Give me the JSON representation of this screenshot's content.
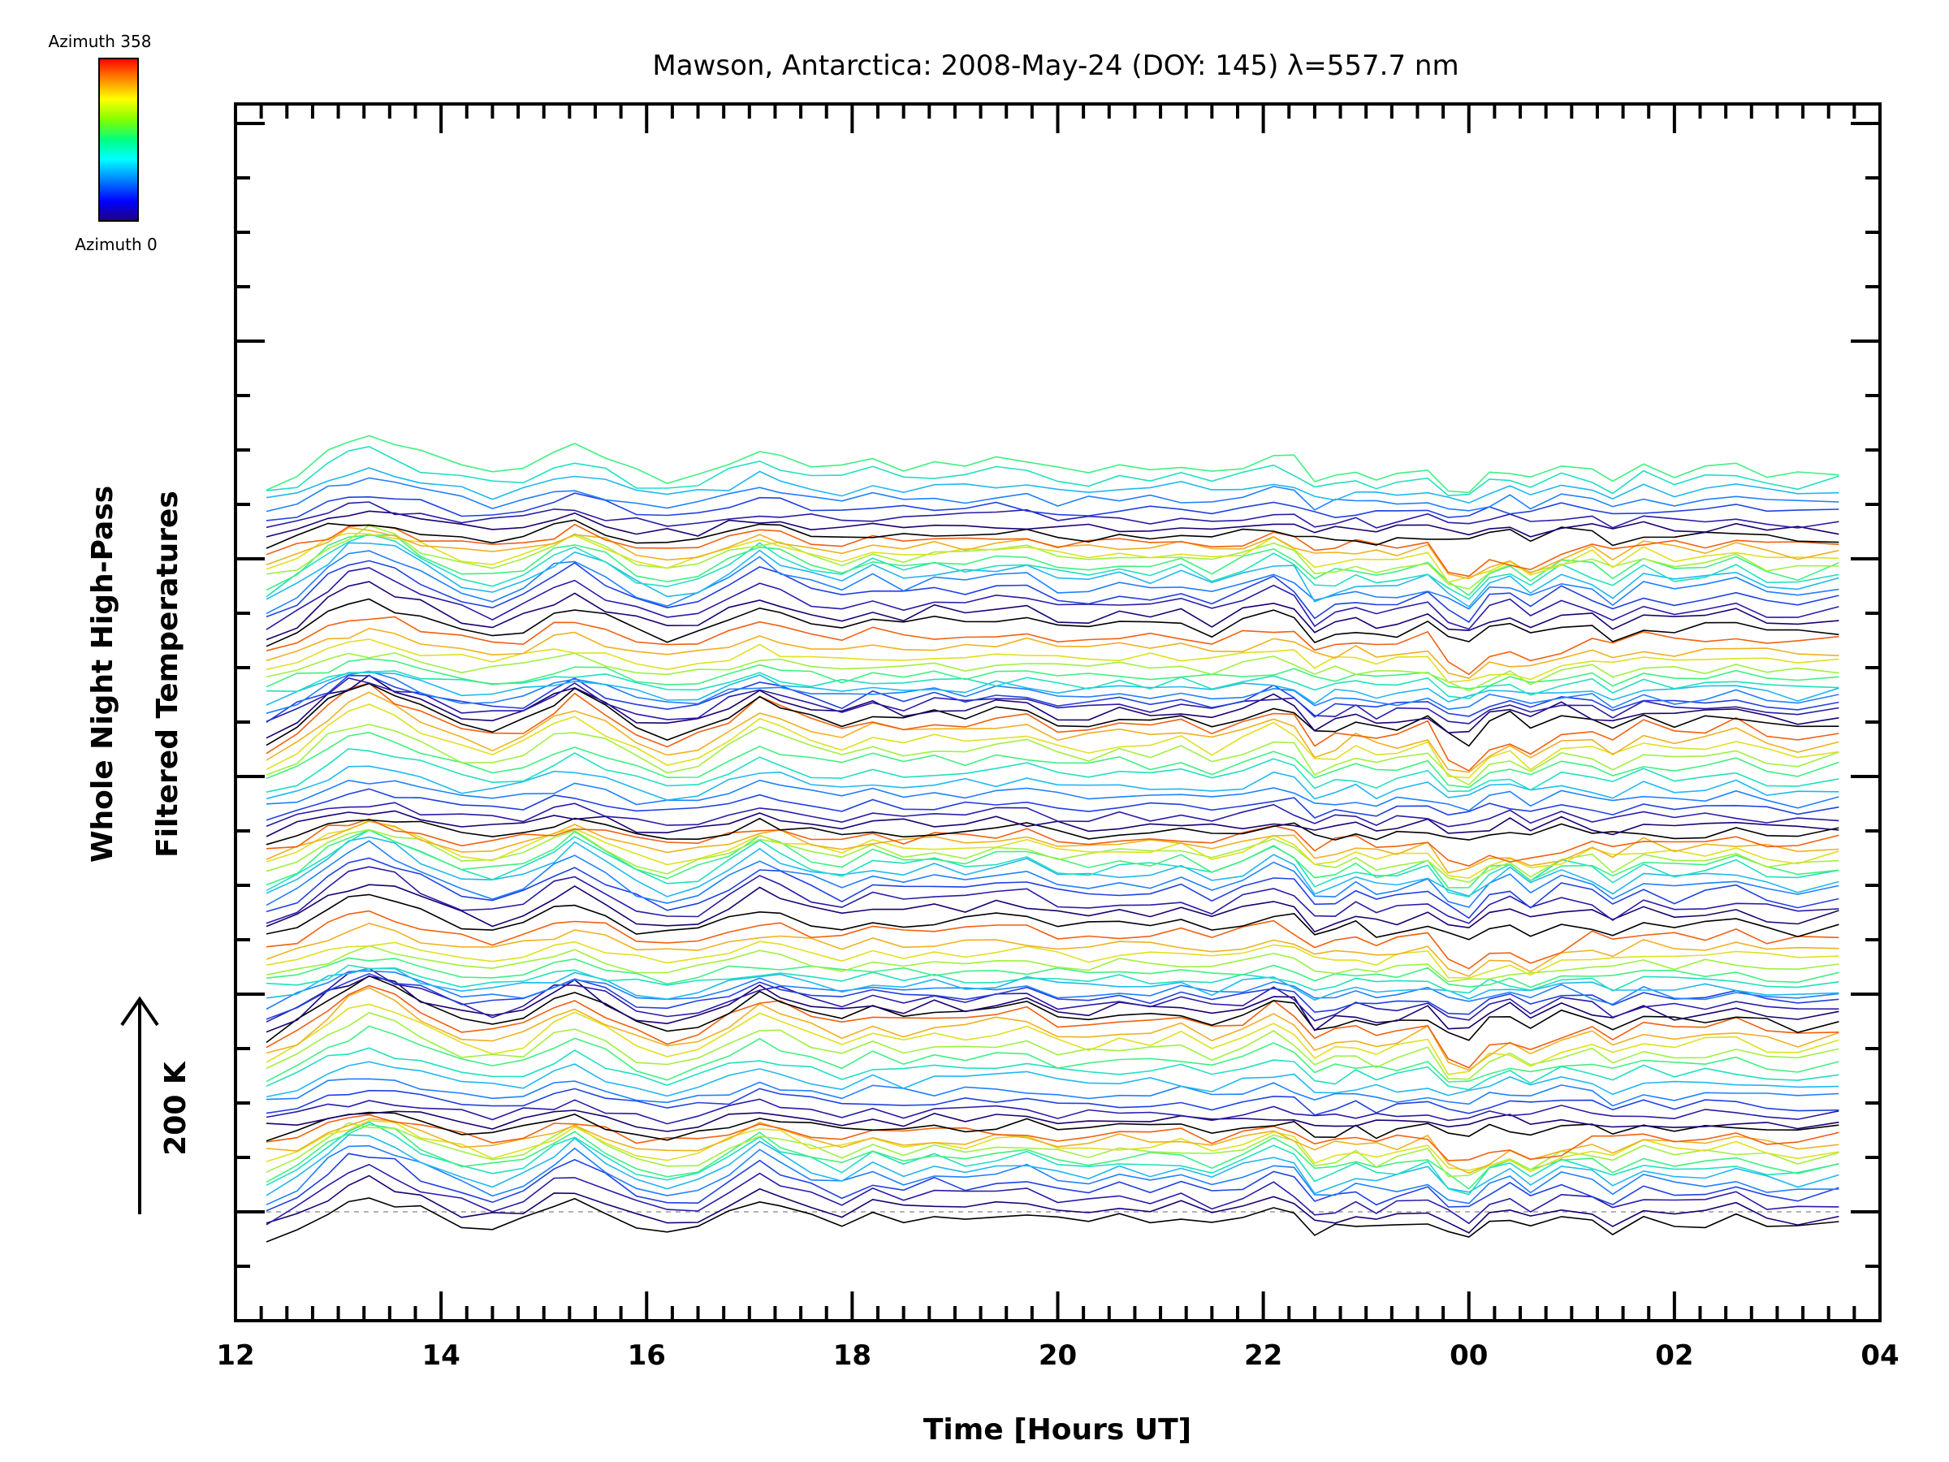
{
  "chart_data": {
    "type": "line",
    "title": "Mawson, Antarctica: 2008-May-24 (DOY: 145) λ=557.7 nm",
    "xlabel": "Time [Hours UT]",
    "ylabel": [
      "Whole Night High-Pass",
      "Filtered Temperatures"
    ],
    "scale_label": "200 K",
    "x_ticks": [
      "12",
      "14",
      "16",
      "18",
      "20",
      "22",
      "00",
      "02",
      "04"
    ],
    "xlim": [
      12,
      28
    ],
    "x_start": 12.3,
    "x_end": 27.6,
    "colorbar": {
      "top_label": "Azimuth 358",
      "bottom_label": "Azimuth 0",
      "colors": [
        "#ff0000",
        "#ff8000",
        "#ffff00",
        "#80ff00",
        "#00ff80",
        "#00ffff",
        "#0080ff",
        "#0000ff",
        "#200080",
        "#000000"
      ]
    },
    "series_count": 92,
    "baseline": "dashed at first trace offset",
    "profile_note": "stacked traces of a common temperature-perturbation pattern, one per azimuth, offset vertically",
    "profile_x": [
      12.3,
      12.6,
      12.9,
      13.1,
      13.3,
      13.55,
      13.8,
      14.2,
      14.5,
      14.8,
      15.1,
      15.3,
      15.6,
      15.9,
      16.2,
      16.5,
      16.8,
      17.1,
      17.3,
      17.6,
      17.9,
      18.2,
      18.5,
      18.8,
      19.1,
      19.4,
      19.7,
      20.0,
      20.3,
      20.6,
      20.9,
      21.2,
      21.5,
      21.8,
      22.1,
      22.3,
      22.5,
      22.7,
      22.9,
      23.1,
      23.3,
      23.6,
      23.8,
      24.0,
      24.2,
      24.4,
      24.6,
      24.9,
      25.2,
      25.4,
      25.7,
      26.0,
      26.3,
      26.6,
      26.9,
      27.2,
      27.6
    ],
    "profile_y": [
      0,
      14,
      38,
      52,
      58,
      48,
      35,
      18,
      12,
      20,
      38,
      48,
      32,
      15,
      6,
      12,
      28,
      45,
      38,
      25,
      18,
      30,
      22,
      28,
      25,
      30,
      32,
      20,
      18,
      24,
      22,
      26,
      15,
      25,
      38,
      30,
      5,
      12,
      18,
      10,
      14,
      22,
      6,
      0,
      18,
      25,
      12,
      28,
      20,
      8,
      24,
      16,
      20,
      25,
      14,
      10,
      18
    ]
  }
}
